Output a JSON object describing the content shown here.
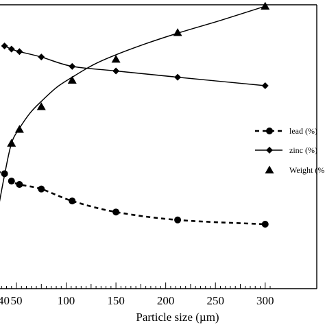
{
  "chart_data": {
    "type": "line",
    "xlabel": "Particle size (µm)",
    "xlim": [
      30,
      310
    ],
    "ylim": [
      0,
      100
    ],
    "x_ticks": [
      50,
      100,
      150,
      200,
      250,
      300
    ],
    "x_tick_labels": [
      "50",
      "100",
      "150",
      "200",
      "250",
      "300"
    ],
    "x_tick_partial_label": "40",
    "legend_position": "right",
    "series": [
      {
        "name": "lead (%)",
        "style": "dashed",
        "marker": "circle",
        "color": "#000000",
        "x": [
          38,
          45,
          53,
          75,
          106,
          150,
          212,
          300
        ],
        "y": [
          40.5,
          37.9,
          36.7,
          35.1,
          30.9,
          27.0,
          24.2,
          22.7
        ],
        "curve_x": [
          30,
          38,
          45,
          53,
          75,
          106,
          150,
          212,
          300
        ],
        "curve_y": [
          41.2,
          40.5,
          37.9,
          36.7,
          35.1,
          30.9,
          27.0,
          24.2,
          22.7
        ]
      },
      {
        "name": "zinc (%)",
        "style": "solid",
        "marker": "diamond",
        "color": "#000000",
        "x": [
          38,
          45,
          53,
          75,
          106,
          150,
          212,
          300
        ],
        "y": [
          85.5,
          84.4,
          83.5,
          81.6,
          78.3,
          76.7,
          74.5,
          71.5
        ]
      },
      {
        "name": "Weight (%",
        "style": "solid",
        "marker": "triangle",
        "color": "#000000",
        "x": [
          45,
          53,
          75,
          106,
          150,
          212,
          300
        ],
        "y": [
          51.2,
          56.1,
          64.1,
          73.4,
          80.8,
          90.2,
          99.5
        ],
        "curve_x": [
          30,
          38,
          45,
          53,
          64,
          75,
          90,
          106,
          128,
          150,
          180,
          212,
          255,
          300
        ],
        "curve_y": [
          25.0,
          40.0,
          51.2,
          56.5,
          62.0,
          66.0,
          70.8,
          74.5,
          79.0,
          82.4,
          86.3,
          90.0,
          94.5,
          99.5
        ]
      }
    ]
  }
}
